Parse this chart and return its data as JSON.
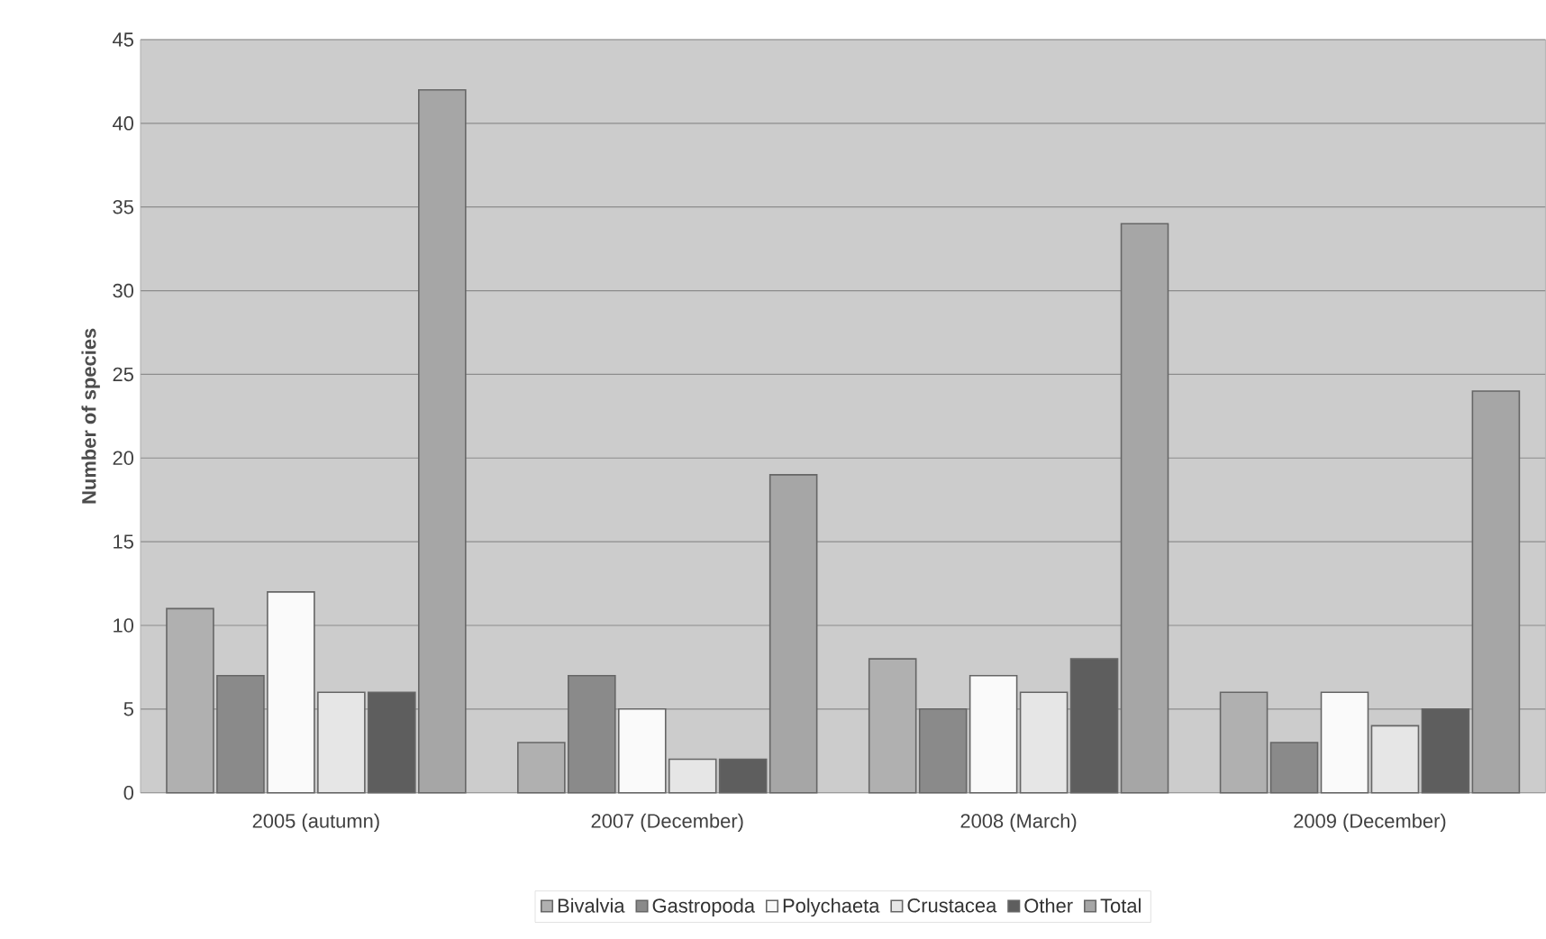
{
  "chart_data": {
    "type": "bar",
    "ylabel": "Number of species",
    "categories": [
      "2005 (autumn)",
      "2007 (December)",
      "2008 (March)",
      "2009 (December)"
    ],
    "series": [
      {
        "name": "Bivalvia",
        "color": "#b0b0b0",
        "values": [
          11,
          3,
          8,
          6
        ]
      },
      {
        "name": "Gastropoda",
        "color": "#8a8a8a",
        "values": [
          7,
          7,
          5,
          3
        ]
      },
      {
        "name": "Polychaeta",
        "color": "#fafafa",
        "values": [
          12,
          5,
          7,
          6
        ]
      },
      {
        "name": "Crustacea",
        "color": "#e6e6e6",
        "values": [
          6,
          2,
          6,
          4
        ]
      },
      {
        "name": "Other",
        "color": "#5e5e5e",
        "values": [
          6,
          2,
          8,
          5
        ]
      },
      {
        "name": "Total",
        "color": "#a6a6a6",
        "values": [
          42,
          19,
          34,
          24
        ]
      }
    ],
    "ylim": [
      0,
      45
    ],
    "yticks": [
      0,
      5,
      10,
      15,
      20,
      25,
      30,
      35,
      40,
      45
    ],
    "grid": "y",
    "legend": "bottom"
  }
}
